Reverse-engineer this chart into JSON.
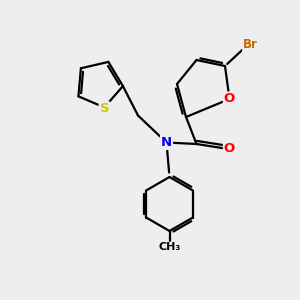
{
  "bg_color": "#eeeeee",
  "atom_colors": {
    "C": "#000000",
    "N": "#0000ff",
    "O": "#ff0000",
    "S": "#cccc00",
    "Br": "#cc6600"
  },
  "bond_color": "#000000",
  "bond_width": 1.6,
  "dbo": 0.08,
  "fs": 9.5
}
